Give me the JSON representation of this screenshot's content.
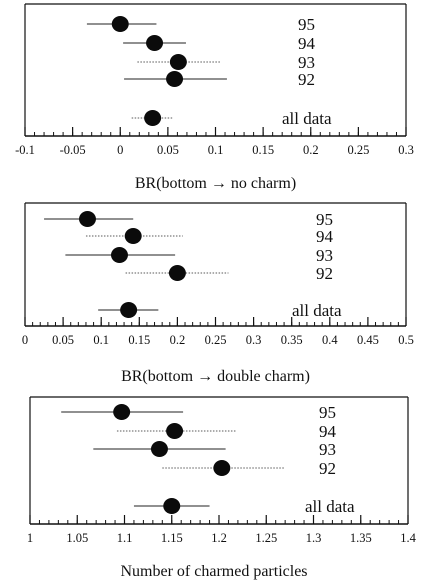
{
  "chart_data": [
    {
      "type": "scatter",
      "xlabel": "BR(bottom → no charm)",
      "xlim": [
        -0.1,
        0.3
      ],
      "major_ticks": [
        -0.1,
        -0.05,
        0,
        0.05,
        0.1,
        0.15,
        0.2,
        0.25,
        0.3
      ],
      "tick_labels": [
        "-0.1",
        "-0.05",
        "0",
        "0.05",
        "0.1",
        "0.15",
        "0.2",
        "0.25",
        "0.3"
      ],
      "minor_step": 0.01,
      "points": [
        {
          "label": "95",
          "value": 0.0,
          "err_low": -0.035,
          "err_high": 0.038,
          "style": "solid"
        },
        {
          "label": "94",
          "value": 0.036,
          "err_low": 0.003,
          "err_high": 0.069,
          "style": "solid"
        },
        {
          "label": "93",
          "value": 0.061,
          "err_low": 0.018,
          "err_high": 0.105,
          "style": "dotted"
        },
        {
          "label": "92",
          "value": 0.057,
          "err_low": 0.004,
          "err_high": 0.112,
          "style": "solid"
        },
        {
          "label": "all data",
          "value": 0.034,
          "err_low": 0.012,
          "err_high": 0.056,
          "style": "dotted"
        }
      ]
    },
    {
      "type": "scatter",
      "xlabel": "BR(bottom → double charm)",
      "xlim": [
        0,
        0.5
      ],
      "major_ticks": [
        0,
        0.05,
        0.1,
        0.15,
        0.2,
        0.25,
        0.3,
        0.35,
        0.4,
        0.45,
        0.5
      ],
      "tick_labels": [
        "0",
        "0.05",
        "0.1",
        "0.15",
        "0.2",
        "0.25",
        "0.3",
        "0.35",
        "0.4",
        "0.45",
        "0.5"
      ],
      "minor_step": 0.01,
      "points": [
        {
          "label": "95",
          "value": 0.082,
          "err_low": 0.025,
          "err_high": 0.142,
          "style": "solid"
        },
        {
          "label": "94",
          "value": 0.142,
          "err_low": 0.08,
          "err_high": 0.207,
          "style": "dotted"
        },
        {
          "label": "93",
          "value": 0.124,
          "err_low": 0.053,
          "err_high": 0.197,
          "style": "solid"
        },
        {
          "label": "92",
          "value": 0.2,
          "err_low": 0.132,
          "err_high": 0.267,
          "style": "dotted"
        },
        {
          "label": "all data",
          "value": 0.136,
          "err_low": 0.096,
          "err_high": 0.175,
          "style": "solid"
        }
      ]
    },
    {
      "type": "scatter",
      "xlabel": "Number of charmed particles",
      "xlim": [
        1,
        1.4
      ],
      "major_ticks": [
        1,
        1.05,
        1.1,
        1.15,
        1.2,
        1.25,
        1.3,
        1.35,
        1.4
      ],
      "tick_labels": [
        "1",
        "1.05",
        "1.1",
        "1.15",
        "1.2",
        "1.25",
        "1.3",
        "1.35",
        "1.4"
      ],
      "minor_step": 0.01,
      "points": [
        {
          "label": "95",
          "value": 1.097,
          "err_low": 1.033,
          "err_high": 1.162,
          "style": "solid"
        },
        {
          "label": "94",
          "value": 1.153,
          "err_low": 1.092,
          "err_high": 1.218,
          "style": "dotted"
        },
        {
          "label": "93",
          "value": 1.137,
          "err_low": 1.067,
          "err_high": 1.207,
          "style": "solid"
        },
        {
          "label": "92",
          "value": 1.203,
          "err_low": 1.14,
          "err_high": 1.27,
          "style": "dotted"
        },
        {
          "label": "all data",
          "value": 1.15,
          "err_low": 1.11,
          "err_high": 1.19,
          "style": "solid"
        }
      ]
    }
  ]
}
